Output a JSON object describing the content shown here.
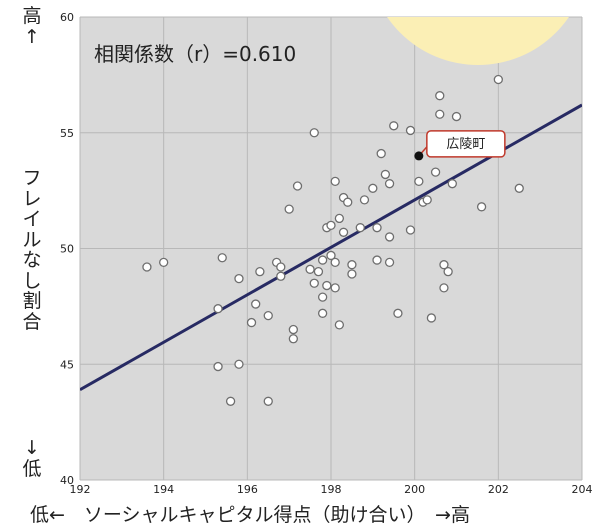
{
  "chart_data": {
    "type": "scatter",
    "title": "",
    "annotation": "相関係数（r）=0.610",
    "xlabel": "低←　ソーシャルキャピタル得点（助け合い）　→高",
    "ylabel": {
      "top": "高↑",
      "main": "フレイルなし割合",
      "bottom": "↓低"
    },
    "xlim": [
      192,
      204
    ],
    "ylim": [
      40,
      60
    ],
    "xticks": [
      192,
      194,
      196,
      198,
      200,
      202,
      204
    ],
    "yticks": [
      40,
      45,
      50,
      55,
      60
    ],
    "grid": true,
    "trendline": {
      "x": [
        192,
        204
      ],
      "y": [
        43.9,
        56.2
      ]
    },
    "highlight": {
      "label": "広陵町",
      "x": 200.1,
      "y": 54.0
    },
    "points": [
      {
        "x": 193.6,
        "y": 49.2
      },
      {
        "x": 194.0,
        "y": 49.4
      },
      {
        "x": 195.3,
        "y": 47.4
      },
      {
        "x": 195.4,
        "y": 49.6
      },
      {
        "x": 195.3,
        "y": 44.9
      },
      {
        "x": 195.8,
        "y": 45.0
      },
      {
        "x": 195.6,
        "y": 43.4
      },
      {
        "x": 195.8,
        "y": 48.7
      },
      {
        "x": 196.1,
        "y": 46.8
      },
      {
        "x": 196.2,
        "y": 47.6
      },
      {
        "x": 196.3,
        "y": 49.0
      },
      {
        "x": 196.5,
        "y": 47.1
      },
      {
        "x": 196.5,
        "y": 43.4
      },
      {
        "x": 196.7,
        "y": 49.4
      },
      {
        "x": 196.8,
        "y": 49.2
      },
      {
        "x": 196.8,
        "y": 48.8
      },
      {
        "x": 197.0,
        "y": 51.7
      },
      {
        "x": 197.1,
        "y": 46.1
      },
      {
        "x": 197.1,
        "y": 46.5
      },
      {
        "x": 197.2,
        "y": 52.7
      },
      {
        "x": 197.5,
        "y": 49.1
      },
      {
        "x": 197.6,
        "y": 48.5
      },
      {
        "x": 197.7,
        "y": 49.0
      },
      {
        "x": 197.6,
        "y": 55.0
      },
      {
        "x": 197.8,
        "y": 47.2
      },
      {
        "x": 197.8,
        "y": 47.9
      },
      {
        "x": 197.9,
        "y": 48.4
      },
      {
        "x": 197.8,
        "y": 49.5
      },
      {
        "x": 197.9,
        "y": 50.9
      },
      {
        "x": 198.0,
        "y": 51.0
      },
      {
        "x": 198.0,
        "y": 49.7
      },
      {
        "x": 198.1,
        "y": 52.9
      },
      {
        "x": 198.1,
        "y": 49.4
      },
      {
        "x": 198.1,
        "y": 48.3
      },
      {
        "x": 198.2,
        "y": 46.7
      },
      {
        "x": 198.2,
        "y": 51.3
      },
      {
        "x": 198.3,
        "y": 52.2
      },
      {
        "x": 198.4,
        "y": 52.0
      },
      {
        "x": 198.3,
        "y": 50.7
      },
      {
        "x": 198.5,
        "y": 49.3
      },
      {
        "x": 198.5,
        "y": 48.9
      },
      {
        "x": 198.7,
        "y": 50.9
      },
      {
        "x": 198.8,
        "y": 52.1
      },
      {
        "x": 199.0,
        "y": 52.6
      },
      {
        "x": 199.1,
        "y": 50.9
      },
      {
        "x": 199.1,
        "y": 49.5
      },
      {
        "x": 199.2,
        "y": 54.1
      },
      {
        "x": 199.3,
        "y": 53.2
      },
      {
        "x": 199.4,
        "y": 52.8
      },
      {
        "x": 199.4,
        "y": 49.4
      },
      {
        "x": 199.4,
        "y": 50.5
      },
      {
        "x": 199.5,
        "y": 55.3
      },
      {
        "x": 199.6,
        "y": 47.2
      },
      {
        "x": 199.9,
        "y": 50.8
      },
      {
        "x": 199.9,
        "y": 55.1
      },
      {
        "x": 200.1,
        "y": 52.9
      },
      {
        "x": 200.2,
        "y": 52.0
      },
      {
        "x": 200.3,
        "y": 52.1
      },
      {
        "x": 200.4,
        "y": 47.0
      },
      {
        "x": 200.5,
        "y": 53.3
      },
      {
        "x": 200.6,
        "y": 55.8
      },
      {
        "x": 200.6,
        "y": 56.6
      },
      {
        "x": 200.7,
        "y": 48.3
      },
      {
        "x": 200.7,
        "y": 49.3
      },
      {
        "x": 200.8,
        "y": 49.0
      },
      {
        "x": 200.9,
        "y": 52.8
      },
      {
        "x": 201.0,
        "y": 55.7
      },
      {
        "x": 201.6,
        "y": 51.8
      },
      {
        "x": 202.0,
        "y": 57.3
      },
      {
        "x": 202.5,
        "y": 52.6
      }
    ]
  },
  "colors": {
    "plot_bg": "#d9d9d9",
    "grid": "#b8b8b8",
    "trend": "#272a63",
    "point_fill": "#ffffff",
    "point_stroke": "#6e6e6e",
    "highlight": "#111111",
    "callout_border": "#c0392b",
    "sun": "#fbefb5",
    "text": "#222222"
  }
}
